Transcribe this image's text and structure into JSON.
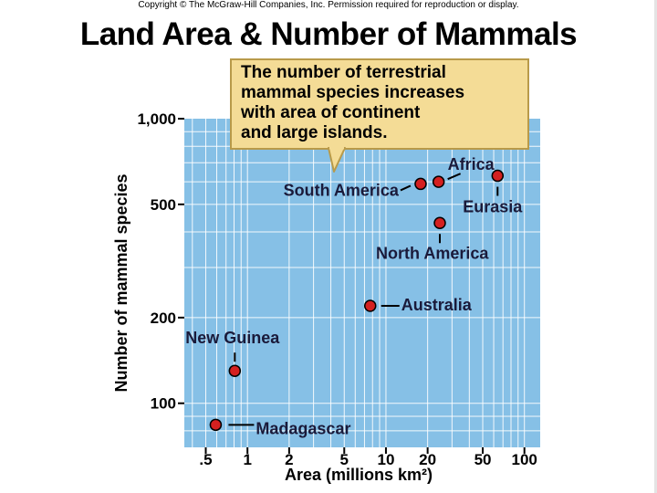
{
  "copyright": "Copyright © The McGraw-Hill Companies, Inc. Permission required for reproduction or display.",
  "title": "Land Area & Number of Mammals",
  "callout_lines": [
    "The number of terrestrial",
    "mammal species increases",
    "with area of continent",
    "and large islands."
  ],
  "colors": {
    "plot_background": "#86c0e6",
    "grid": "#ffffff",
    "point": "#d42020",
    "callout_fill": "#f4dc96"
  },
  "chart_data": {
    "type": "scatter",
    "x_scale": "log",
    "y_scale": "log",
    "xlabel": "Area (millions km²)",
    "ylabel": "Number of mammal species",
    "xlim": [
      0.35,
      130
    ],
    "ylim": [
      70,
      1000
    ],
    "grid": true,
    "x_ticks": [
      {
        "value": 0.5,
        "label": ".5"
      },
      {
        "value": 1,
        "label": "1"
      },
      {
        "value": 2,
        "label": "2"
      },
      {
        "value": 5,
        "label": "5"
      },
      {
        "value": 10,
        "label": "10"
      },
      {
        "value": 20,
        "label": "20"
      },
      {
        "value": 50,
        "label": "50"
      },
      {
        "value": 100,
        "label": "100"
      }
    ],
    "y_ticks": [
      {
        "value": 100,
        "label": "100"
      },
      {
        "value": 200,
        "label": "200"
      },
      {
        "value": 500,
        "label": "500"
      },
      {
        "value": 1000,
        "label": "1,000"
      }
    ],
    "points": [
      {
        "label": "Madagascar",
        "x": 0.59,
        "y": 84
      },
      {
        "label": "New Guinea",
        "x": 0.81,
        "y": 130
      },
      {
        "label": "Australia",
        "x": 7.7,
        "y": 220
      },
      {
        "label": "North America",
        "x": 24.5,
        "y": 430
      },
      {
        "label": "South America",
        "x": 17.8,
        "y": 590
      },
      {
        "label": "Africa",
        "x": 24,
        "y": 600
      },
      {
        "label": "Eurasia",
        "x": 64,
        "y": 630
      }
    ]
  }
}
